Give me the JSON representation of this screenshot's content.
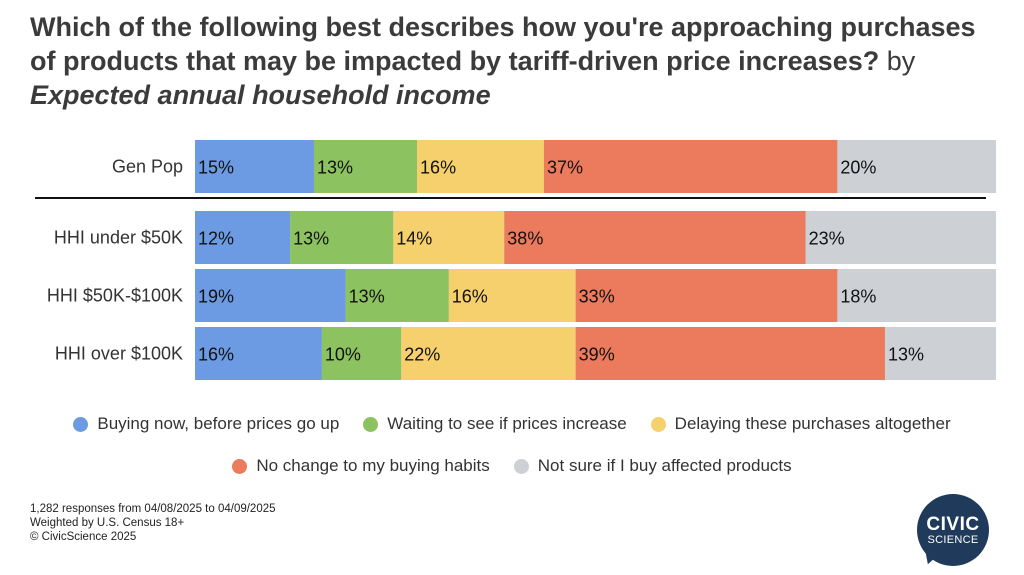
{
  "title": {
    "main": "Which of the following best describes how you're approaching purchases of products that may be impacted by tariff-driven price increases?",
    "by": "by",
    "subtitle": "Expected annual household income"
  },
  "chart_data": {
    "type": "bar",
    "orientation": "horizontal",
    "stacked": true,
    "categories": [
      "Gen Pop",
      "HHI under $50K",
      "HHI $50K-$100K",
      "HHI over $100K"
    ],
    "series": [
      {
        "name": "Buying now, before prices go up",
        "color": "#6c9be3",
        "values": [
          15,
          12,
          19,
          16
        ]
      },
      {
        "name": "Waiting to see if prices increase",
        "color": "#8cc25f",
        "values": [
          13,
          13,
          13,
          10
        ]
      },
      {
        "name": "Delaying these purchases altogether",
        "color": "#f6d06c",
        "values": [
          16,
          14,
          16,
          22
        ]
      },
      {
        "name": "No change to my buying habits",
        "color": "#ec7a5c",
        "values": [
          37,
          38,
          33,
          39
        ]
      },
      {
        "name": "Not sure if I buy affected products",
        "color": "#cdd1d6",
        "values": [
          20,
          23,
          18,
          13
        ]
      }
    ],
    "value_suffix": "%",
    "xlim": [
      0,
      101
    ],
    "legend": "bottom",
    "separator_after": "Gen Pop"
  },
  "footer": {
    "line1": "1,282 responses from 04/08/2025 to 04/09/2025",
    "line2": "Weighted by U.S. Census 18+",
    "line3": "© CivicScience 2025"
  },
  "logo": {
    "line1": "CIVIC",
    "line2": "SCIENCE",
    "icon": "speech-bubble-logo-icon"
  }
}
